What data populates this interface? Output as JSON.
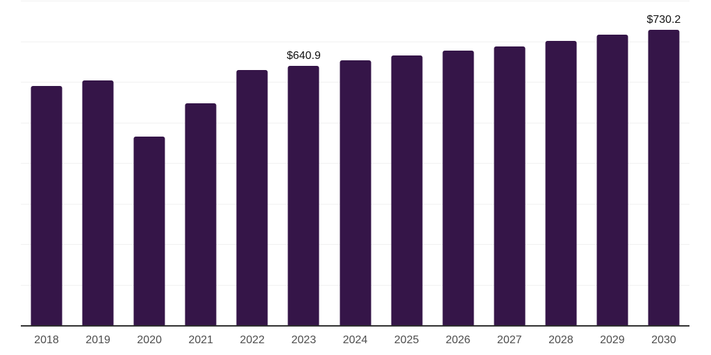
{
  "chart_data": {
    "type": "bar",
    "title": "",
    "xlabel": "",
    "ylabel": "",
    "categories": [
      "2018",
      "2019",
      "2020",
      "2021",
      "2022",
      "2023",
      "2024",
      "2025",
      "2026",
      "2027",
      "2028",
      "2029",
      "2030"
    ],
    "values": [
      591.0,
      605.6,
      467.2,
      548.7,
      631.0,
      640.9,
      654.7,
      666.7,
      678.6,
      689.0,
      702.6,
      717.9,
      730.2
    ],
    "labeled_points": [
      {
        "category": "2023",
        "label": "$640.9"
      },
      {
        "category": "2030",
        "label": "$730.2"
      }
    ],
    "ylim": [
      0,
      800
    ],
    "gridline_interval": 100,
    "grid": "horizontal-only",
    "legend": "none",
    "y_tick_labels_visible": false,
    "colors": {
      "bar": "#351548",
      "gridline": "#f1f1f1",
      "axis_line": "#2f2f2f",
      "value_label": "#111111",
      "tick_label": "#4d4d4d",
      "background": "#ffffff"
    }
  }
}
